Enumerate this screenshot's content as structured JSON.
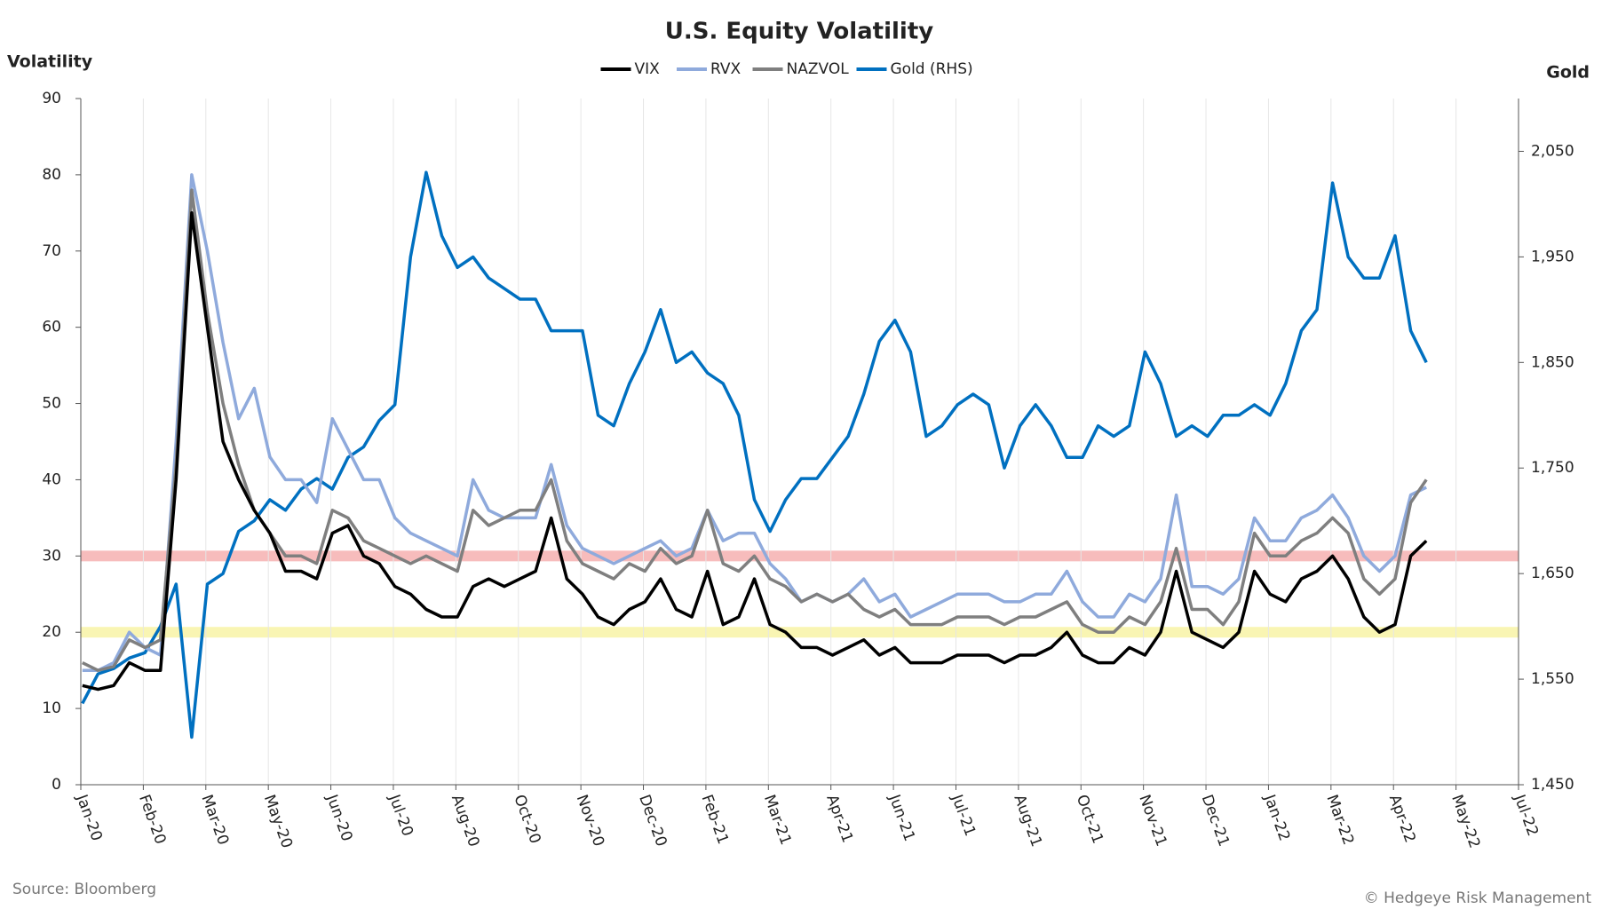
{
  "chart_data": {
    "type": "line",
    "title": "U.S. Equity Volatility",
    "y_label": "Volatility",
    "y2_label": "Gold",
    "source": "Source: Bloomberg",
    "credit": "© Hedgeye Risk Management",
    "grid": "x",
    "xlim": [
      43831,
      44751
    ],
    "xticks": [
      {
        "value": 43831,
        "label": "Jan-20"
      },
      {
        "value": 43871,
        "label": "Feb-20"
      },
      {
        "value": 43911,
        "label": "Mar-20"
      },
      {
        "value": 43951,
        "label": "May-20"
      },
      {
        "value": 43991,
        "label": "Jun-20"
      },
      {
        "value": 44031,
        "label": "Jul-20"
      },
      {
        "value": 44071,
        "label": "Aug-20"
      },
      {
        "value": 44111,
        "label": "Oct-20"
      },
      {
        "value": 44151,
        "label": "Nov-20"
      },
      {
        "value": 44191,
        "label": "Dec-20"
      },
      {
        "value": 44231,
        "label": "Feb-21"
      },
      {
        "value": 44271,
        "label": "Mar-21"
      },
      {
        "value": 44311,
        "label": "Apr-21"
      },
      {
        "value": 44351,
        "label": "Jun-21"
      },
      {
        "value": 44391,
        "label": "Jul-21"
      },
      {
        "value": 44431,
        "label": "Aug-21"
      },
      {
        "value": 44471,
        "label": "Oct-21"
      },
      {
        "value": 44511,
        "label": "Nov-21"
      },
      {
        "value": 44551,
        "label": "Dec-21"
      },
      {
        "value": 44591,
        "label": "Jan-22"
      },
      {
        "value": 44631,
        "label": "Mar-22"
      },
      {
        "value": 44671,
        "label": "Apr-22"
      },
      {
        "value": 44711,
        "label": "May-22"
      },
      {
        "value": 44751,
        "label": "Jul-22"
      }
    ],
    "ylim": [
      0,
      90
    ],
    "yticks": [
      0,
      10,
      20,
      30,
      40,
      50,
      60,
      70,
      80,
      90
    ],
    "y2lim": [
      1450,
      2100
    ],
    "y2ticks": [
      {
        "value": 1450,
        "label": "1,450"
      },
      {
        "value": 1550,
        "label": "1,550"
      },
      {
        "value": 1650,
        "label": "1,650"
      },
      {
        "value": 1750,
        "label": "1,750"
      },
      {
        "value": 1850,
        "label": "1,850"
      },
      {
        "value": 1950,
        "label": "1,950"
      },
      {
        "value": 2050,
        "label": "2,050"
      }
    ],
    "bands": [
      {
        "value": 30,
        "color": "#f4a6a6"
      },
      {
        "value": 20,
        "color": "#f7f29a"
      }
    ],
    "x": [
      43832,
      43842,
      43852,
      43862,
      43872,
      43882,
      43892,
      43902,
      43912,
      43922,
      43932,
      43942,
      43952,
      43962,
      43972,
      43982,
      43992,
      44002,
      44012,
      44022,
      44032,
      44042,
      44052,
      44062,
      44072,
      44082,
      44092,
      44102,
      44112,
      44122,
      44132,
      44142,
      44152,
      44162,
      44172,
      44182,
      44192,
      44202,
      44212,
      44222,
      44232,
      44242,
      44252,
      44262,
      44272,
      44282,
      44292,
      44302,
      44312,
      44322,
      44332,
      44342,
      44352,
      44362,
      44372,
      44382,
      44392,
      44402,
      44412,
      44422,
      44432,
      44442,
      44452,
      44462,
      44472,
      44482,
      44492,
      44502,
      44512,
      44522,
      44532,
      44542,
      44552,
      44562,
      44572,
      44582,
      44592,
      44602,
      44612,
      44622,
      44632,
      44642,
      44652,
      44662,
      44672,
      44682,
      44692
    ],
    "series": [
      {
        "name": "VIX",
        "color": "#000000",
        "values": [
          13,
          12.5,
          13,
          16,
          15,
          15,
          40,
          75,
          60,
          45,
          40,
          36,
          33,
          28,
          28,
          27,
          33,
          34,
          30,
          29,
          26,
          25,
          23,
          22,
          22,
          26,
          27,
          26,
          27,
          28,
          35,
          27,
          25,
          22,
          21,
          23,
          24,
          27,
          23,
          22,
          28,
          21,
          22,
          27,
          21,
          20,
          18,
          18,
          17,
          18,
          19,
          17,
          18,
          16,
          16,
          16,
          17,
          17,
          17,
          16,
          17,
          17,
          18,
          20,
          17,
          16,
          16,
          18,
          17,
          20,
          28,
          20,
          19,
          18,
          20,
          28,
          25,
          24,
          27,
          28,
          30,
          27,
          22,
          20,
          21,
          30,
          32
        ]
      },
      {
        "name": "RVX",
        "color": "#8faadc",
        "values": [
          15,
          15,
          16,
          20,
          18,
          17,
          45,
          80,
          70,
          58,
          48,
          52,
          43,
          40,
          40,
          37,
          48,
          44,
          40,
          40,
          35,
          33,
          32,
          31,
          30,
          40,
          36,
          35,
          35,
          35,
          42,
          34,
          31,
          30,
          29,
          30,
          31,
          32,
          30,
          31,
          36,
          32,
          33,
          33,
          29,
          27,
          24,
          25,
          24,
          25,
          27,
          24,
          25,
          22,
          23,
          24,
          25,
          25,
          25,
          24,
          24,
          25,
          25,
          28,
          24,
          22,
          22,
          25,
          24,
          27,
          38,
          26,
          26,
          25,
          27,
          35,
          32,
          32,
          35,
          36,
          38,
          35,
          30,
          28,
          30,
          38,
          39
        ]
      },
      {
        "name": "NAZVOL",
        "color": "#7f7f7f",
        "values": [
          16,
          15,
          15.5,
          19,
          18,
          19,
          42,
          78,
          62,
          50,
          42,
          36,
          33,
          30,
          30,
          29,
          36,
          35,
          32,
          31,
          30,
          29,
          30,
          29,
          28,
          36,
          34,
          35,
          36,
          36,
          40,
          32,
          29,
          28,
          27,
          29,
          28,
          31,
          29,
          30,
          36,
          29,
          28,
          30,
          27,
          26,
          24,
          25,
          24,
          25,
          23,
          22,
          23,
          21,
          21,
          21,
          22,
          22,
          22,
          21,
          22,
          22,
          23,
          24,
          21,
          20,
          20,
          22,
          21,
          24,
          31,
          23,
          23,
          21,
          24,
          33,
          30,
          30,
          32,
          33,
          35,
          33,
          27,
          25,
          27,
          37,
          40
        ]
      },
      {
        "name": "Gold (RHS)",
        "color": "#0070c0",
        "axis": "y2",
        "values": [
          1527,
          1555,
          1560,
          1570,
          1575,
          1600,
          1640,
          1495,
          1640,
          1650,
          1690,
          1700,
          1720,
          1710,
          1730,
          1740,
          1730,
          1760,
          1770,
          1795,
          1810,
          1950,
          2030,
          1970,
          1940,
          1950,
          1930,
          1920,
          1910,
          1910,
          1880,
          1880,
          1880,
          1800,
          1790,
          1830,
          1860,
          1900,
          1850,
          1860,
          1840,
          1830,
          1800,
          1720,
          1690,
          1720,
          1740,
          1740,
          1760,
          1780,
          1820,
          1870,
          1890,
          1860,
          1780,
          1790,
          1810,
          1820,
          1810,
          1750,
          1790,
          1810,
          1790,
          1760,
          1760,
          1790,
          1780,
          1790,
          1860,
          1830,
          1780,
          1790,
          1780,
          1800,
          1800,
          1810,
          1800,
          1830,
          1880,
          1900,
          2020,
          1950,
          1930,
          1930,
          1970,
          1880,
          1850
        ]
      }
    ]
  }
}
